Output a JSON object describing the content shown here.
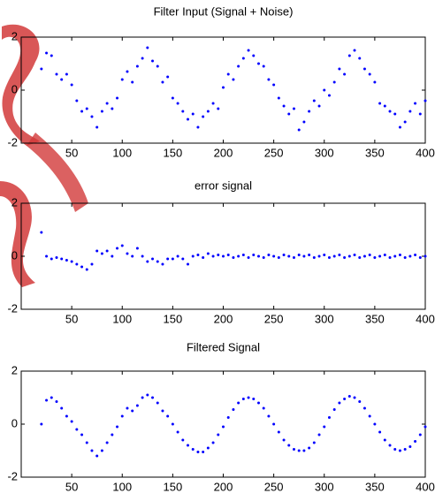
{
  "chart_data": [
    {
      "type": "line",
      "title": "Filter Input (Signal + Noise)",
      "marker": "dot",
      "x": [
        20,
        25,
        30,
        35,
        40,
        45,
        50,
        55,
        60,
        65,
        70,
        75,
        80,
        85,
        90,
        95,
        100,
        105,
        110,
        115,
        120,
        125,
        130,
        135,
        140,
        145,
        150,
        155,
        160,
        165,
        170,
        175,
        180,
        185,
        190,
        195,
        200,
        205,
        210,
        215,
        220,
        225,
        230,
        235,
        240,
        245,
        250,
        255,
        260,
        265,
        270,
        275,
        280,
        285,
        290,
        295,
        300,
        305,
        310,
        315,
        320,
        325,
        330,
        335,
        340,
        345,
        350,
        355,
        360,
        365,
        370,
        375,
        380,
        385,
        390,
        395,
        400
      ],
      "series": [
        {
          "color": "#0000ff",
          "values": [
            0.8,
            1.4,
            1.3,
            0.6,
            0.4,
            0.6,
            0.2,
            -0.4,
            -0.8,
            -0.7,
            -1.0,
            -1.4,
            -0.8,
            -0.5,
            -0.7,
            -0.3,
            0.4,
            0.7,
            0.3,
            0.9,
            1.2,
            1.6,
            1.1,
            0.9,
            0.3,
            0.5,
            -0.3,
            -0.5,
            -0.8,
            -1.1,
            -0.9,
            -1.4,
            -1.0,
            -0.8,
            -0.5,
            -0.7,
            0.1,
            0.6,
            0.4,
            0.9,
            1.2,
            1.5,
            1.3,
            1.0,
            0.9,
            0.4,
            0.2,
            -0.3,
            -0.6,
            -0.9,
            -0.7,
            -1.5,
            -1.2,
            -0.8,
            -0.4,
            -0.6,
            0.0,
            -0.2,
            0.3,
            0.8,
            0.6,
            1.3,
            1.5,
            1.2,
            0.8,
            0.6,
            0.3,
            -0.5,
            -0.6,
            -0.8,
            -0.9,
            -1.4,
            -1.2,
            -0.8,
            -0.5,
            -0.9,
            -0.4
          ]
        }
      ],
      "xlim": [
        0,
        400
      ],
      "ylim": [
        -2,
        2
      ],
      "xticks": [
        50,
        100,
        150,
        200,
        250,
        300,
        350,
        400
      ],
      "yticks": [
        -2,
        0,
        2
      ]
    },
    {
      "type": "line",
      "title": "error signal",
      "marker": "dot",
      "x": [
        20,
        25,
        30,
        35,
        40,
        45,
        50,
        55,
        60,
        65,
        70,
        75,
        80,
        85,
        90,
        95,
        100,
        105,
        110,
        115,
        120,
        125,
        130,
        135,
        140,
        145,
        150,
        155,
        160,
        165,
        170,
        175,
        180,
        185,
        190,
        195,
        200,
        205,
        210,
        215,
        220,
        225,
        230,
        235,
        240,
        245,
        250,
        255,
        260,
        265,
        270,
        275,
        280,
        285,
        290,
        295,
        300,
        305,
        310,
        315,
        320,
        325,
        330,
        335,
        340,
        345,
        350,
        355,
        360,
        365,
        370,
        375,
        380,
        385,
        390,
        395,
        400
      ],
      "series": [
        {
          "color": "#0000ff",
          "values": [
            0.9,
            0.0,
            -0.1,
            -0.05,
            -0.1,
            -0.15,
            -0.2,
            -0.3,
            -0.4,
            -0.5,
            -0.3,
            0.2,
            0.1,
            0.2,
            0.0,
            0.3,
            0.4,
            0.1,
            0.0,
            0.3,
            0.0,
            -0.2,
            -0.1,
            -0.2,
            -0.3,
            -0.1,
            -0.1,
            0.0,
            -0.1,
            -0.3,
            0.0,
            0.05,
            -0.05,
            0.1,
            0.0,
            0.05,
            0.0,
            0.05,
            -0.05,
            0.0,
            0.05,
            -0.05,
            0.05,
            0.0,
            -0.05,
            0.05,
            0.0,
            -0.05,
            0.05,
            0.0,
            -0.05,
            0.05,
            0.0,
            0.05,
            -0.05,
            0.0,
            0.05,
            -0.05,
            0.0,
            0.05,
            -0.05,
            0.0,
            0.05,
            -0.05,
            0.0,
            0.05,
            -0.05,
            0.0,
            0.05,
            -0.05,
            0.0,
            0.05,
            -0.05,
            0.0,
            0.05,
            -0.05,
            0.0
          ]
        }
      ],
      "xlim": [
        0,
        400
      ],
      "ylim": [
        -2,
        2
      ],
      "xticks": [
        50,
        100,
        150,
        200,
        250,
        300,
        350,
        400
      ],
      "yticks": [
        -2,
        0,
        2
      ]
    },
    {
      "type": "line",
      "title": "Filtered Signal",
      "marker": "dot",
      "x": [
        20,
        25,
        30,
        35,
        40,
        45,
        50,
        55,
        60,
        65,
        70,
        75,
        80,
        85,
        90,
        95,
        100,
        105,
        110,
        115,
        120,
        125,
        130,
        135,
        140,
        145,
        150,
        155,
        160,
        165,
        170,
        175,
        180,
        185,
        190,
        195,
        200,
        205,
        210,
        215,
        220,
        225,
        230,
        235,
        240,
        245,
        250,
        255,
        260,
        265,
        270,
        275,
        280,
        285,
        290,
        295,
        300,
        305,
        310,
        315,
        320,
        325,
        330,
        335,
        340,
        345,
        350,
        355,
        360,
        365,
        370,
        375,
        380,
        385,
        390,
        395,
        400
      ],
      "series": [
        {
          "color": "#0000ff",
          "values": [
            0.0,
            0.9,
            1.0,
            0.85,
            0.6,
            0.3,
            0.1,
            -0.2,
            -0.4,
            -0.7,
            -1.0,
            -1.2,
            -1.0,
            -0.7,
            -0.4,
            -0.1,
            0.3,
            0.6,
            0.5,
            0.7,
            1.0,
            1.1,
            1.0,
            0.8,
            0.5,
            0.3,
            0.0,
            -0.3,
            -0.6,
            -0.8,
            -0.95,
            -1.05,
            -1.05,
            -0.9,
            -0.7,
            -0.4,
            -0.1,
            0.25,
            0.55,
            0.8,
            0.95,
            1.0,
            0.95,
            0.8,
            0.6,
            0.3,
            0.0,
            -0.3,
            -0.6,
            -0.8,
            -0.95,
            -1.0,
            -1.0,
            -0.9,
            -0.7,
            -0.4,
            -0.1,
            0.25,
            0.55,
            0.8,
            0.95,
            1.05,
            1.0,
            0.85,
            0.6,
            0.3,
            0.0,
            -0.3,
            -0.6,
            -0.8,
            -0.95,
            -1.0,
            -0.95,
            -0.85,
            -0.65,
            -0.4,
            -0.1
          ]
        }
      ],
      "xlim": [
        0,
        400
      ],
      "ylim": [
        -2,
        2
      ],
      "xticks": [
        50,
        100,
        150,
        200,
        250,
        300,
        350,
        400
      ],
      "yticks": [
        -2,
        0,
        2
      ]
    }
  ]
}
